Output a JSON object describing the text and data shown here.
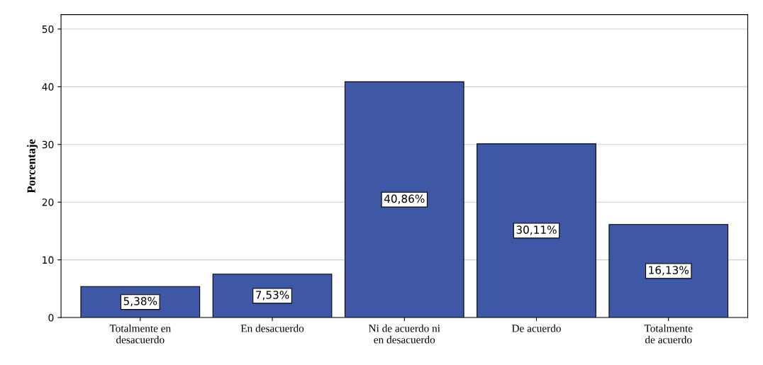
{
  "chart_data": {
    "type": "bar",
    "ylabel": "Porcentaje",
    "categories": [
      "Totalmente en desacuerdo",
      "En desacuerdo",
      "Ni de acuerdo ni en desacuerdo",
      "De acuerdo",
      "Totalmente de acuerdo"
    ],
    "values": [
      5.38,
      7.53,
      40.86,
      30.11,
      16.13
    ],
    "value_labels": [
      "5,38%",
      "7,53%",
      "40,86%",
      "30,11%",
      "16,13%"
    ],
    "color": "#3f58a6",
    "ylim": [
      0,
      52.5
    ],
    "yticks": [
      0,
      10,
      20,
      30,
      40,
      50
    ],
    "grid": "y"
  }
}
